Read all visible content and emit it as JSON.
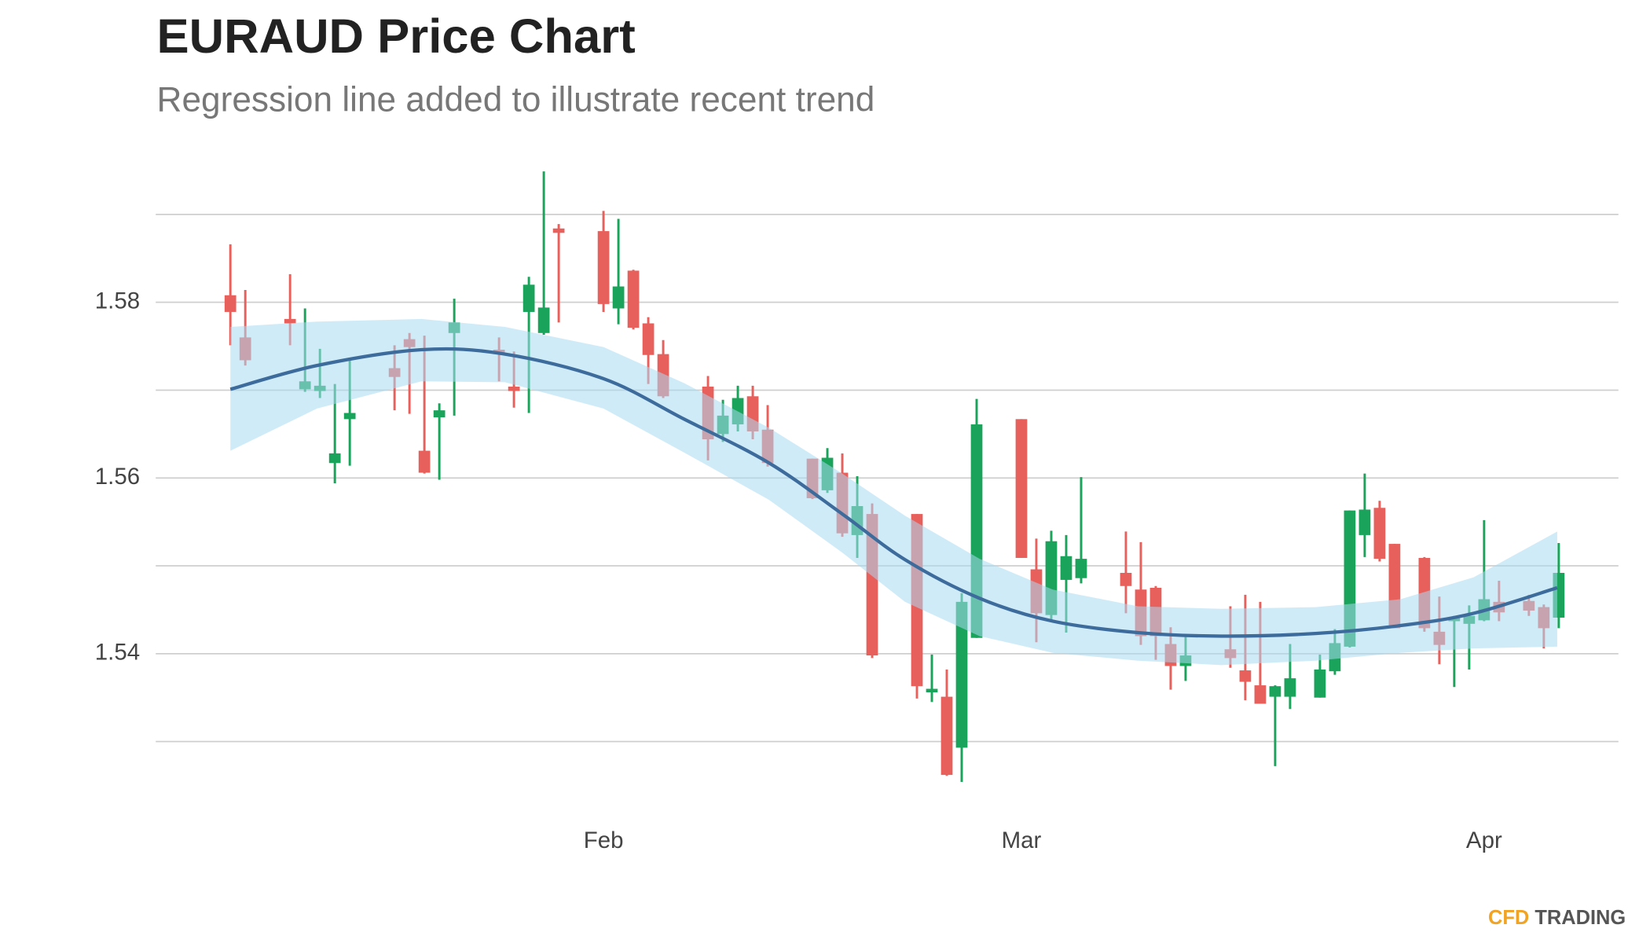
{
  "chart_data": {
    "type": "candlestick",
    "title": "EURAUD Price Chart",
    "subtitle": "Regression line added to illustrate recent trend",
    "brand": {
      "part1": "CFD",
      "part2": "TRADING"
    },
    "up_color": "#1aa35a",
    "down_color": "#e8605c",
    "band_color": "#a9daf2",
    "line_color": "#3d6c9c",
    "grid": true,
    "xlim": [
      2,
      100
    ],
    "xticks": [
      {
        "value": 32,
        "label": "Feb"
      },
      {
        "value": 60,
        "label": "Mar"
      },
      {
        "value": 91,
        "label": "Apr"
      }
    ],
    "ylim": [
      1.523,
      1.595
    ],
    "yticks": [
      1.54,
      1.56,
      1.58
    ],
    "ygrid": [
      1.53,
      1.55,
      1.57,
      1.59
    ],
    "x": [
      7,
      8,
      11,
      12,
      13,
      14,
      15,
      18,
      19,
      20,
      21,
      22,
      25,
      26,
      27,
      28,
      29,
      32,
      33,
      34,
      35,
      36,
      39,
      40,
      41,
      42,
      43,
      46,
      47,
      48,
      49,
      50,
      53,
      54,
      55,
      56,
      57,
      60,
      61,
      62,
      63,
      64,
      67,
      68,
      69,
      70,
      71,
      74,
      75,
      76,
      77,
      78,
      80,
      81,
      82,
      83,
      84,
      85,
      87,
      88,
      89,
      90,
      91,
      92,
      94,
      95,
      96
    ],
    "open": [
      1.5808,
      1.576,
      1.5781,
      1.5701,
      1.5699,
      1.5617,
      1.5667,
      1.5725,
      1.5758,
      1.5631,
      1.5669,
      1.5765,
      1.5746,
      1.5704,
      1.5789,
      1.5765,
      1.5884,
      1.5881,
      1.5793,
      1.5836,
      1.5776,
      1.5741,
      1.5704,
      1.565,
      1.5661,
      1.5693,
      1.5655,
      1.5622,
      1.5586,
      1.5606,
      1.5535,
      1.5559,
      1.5559,
      1.5356,
      1.5351,
      1.5293,
      1.5418,
      1.5667,
      1.5496,
      1.5444,
      1.5484,
      1.5486,
      1.5492,
      1.5473,
      1.5475,
      1.5411,
      1.5386,
      1.5405,
      1.5381,
      1.5364,
      1.5351,
      1.5351,
      1.535,
      1.538,
      1.5408,
      1.5535,
      1.5566,
      1.5525,
      1.5509,
      1.5425,
      1.5437,
      1.5434,
      1.5438,
      1.5459,
      1.546,
      1.5453,
      1.5441
    ],
    "high": [
      1.5866,
      1.5814,
      1.5832,
      1.5793,
      1.5747,
      1.5707,
      1.5734,
      1.5751,
      1.5765,
      1.5762,
      1.5685,
      1.5804,
      1.576,
      1.5744,
      1.5829,
      1.5949,
      1.5889,
      1.5904,
      1.5895,
      1.5837,
      1.5783,
      1.5757,
      1.5716,
      1.5689,
      1.5705,
      1.5705,
      1.5683,
      1.5622,
      1.5634,
      1.5628,
      1.5602,
      1.5571,
      1.5559,
      1.5399,
      1.5382,
      1.5469,
      1.569,
      1.5667,
      1.5531,
      1.554,
      1.5535,
      1.5601,
      1.5539,
      1.5527,
      1.5477,
      1.543,
      1.542,
      1.5454,
      1.5467,
      1.5459,
      1.5364,
      1.5411,
      1.5399,
      1.5428,
      1.5563,
      1.5605,
      1.5574,
      1.5525,
      1.551,
      1.5465,
      1.5443,
      1.5455,
      1.5552,
      1.5483,
      1.5467,
      1.5456,
      1.5526
    ],
    "low": [
      1.5751,
      1.5728,
      1.5751,
      1.5698,
      1.5691,
      1.5594,
      1.5614,
      1.5677,
      1.5673,
      1.5605,
      1.5598,
      1.5671,
      1.571,
      1.568,
      1.5674,
      1.5763,
      1.5777,
      1.5789,
      1.5775,
      1.5769,
      1.5707,
      1.5691,
      1.562,
      1.5641,
      1.5653,
      1.5644,
      1.5613,
      1.5576,
      1.5583,
      1.5533,
      1.5509,
      1.5395,
      1.5349,
      1.5345,
      1.5261,
      1.5254,
      1.5418,
      1.5509,
      1.5413,
      1.5438,
      1.5424,
      1.548,
      1.5446,
      1.541,
      1.5393,
      1.5359,
      1.5369,
      1.5384,
      1.5347,
      1.5343,
      1.5272,
      1.5337,
      1.535,
      1.5376,
      1.5407,
      1.551,
      1.5505,
      1.5429,
      1.5425,
      1.5388,
      1.5362,
      1.5382,
      1.5437,
      1.5437,
      1.5443,
      1.5406,
      1.5429
    ],
    "close": [
      1.5789,
      1.5734,
      1.5776,
      1.571,
      1.5705,
      1.5628,
      1.5674,
      1.5715,
      1.5749,
      1.5606,
      1.5677,
      1.5777,
      1.5741,
      1.5699,
      1.582,
      1.5794,
      1.5879,
      1.5798,
      1.5818,
      1.5771,
      1.574,
      1.5693,
      1.5644,
      1.5671,
      1.5691,
      1.5653,
      1.5617,
      1.5577,
      1.5623,
      1.5537,
      1.5568,
      1.5398,
      1.5363,
      1.536,
      1.5262,
      1.5459,
      1.5661,
      1.5509,
      1.5446,
      1.5528,
      1.5511,
      1.5508,
      1.5477,
      1.542,
      1.542,
      1.5386,
      1.5398,
      1.5395,
      1.5368,
      1.5343,
      1.5363,
      1.5372,
      1.5382,
      1.5412,
      1.5563,
      1.5564,
      1.5508,
      1.5429,
      1.5429,
      1.541,
      1.5441,
      1.5443,
      1.5462,
      1.5447,
      1.5449,
      1.5429,
      1.5492
    ],
    "regression": {
      "x": [
        7,
        12.8,
        19.8,
        25.4,
        32,
        37.4,
        43.1,
        48,
        52.2,
        57.2,
        62.1,
        67.8,
        73.4,
        79.7,
        85.4,
        90.3,
        95.9
      ],
      "values": [
        1.5701,
        1.5728,
        1.5746,
        1.5741,
        1.5713,
        1.5667,
        1.5617,
        1.5559,
        1.5507,
        1.5463,
        1.5437,
        1.5424,
        1.542,
        1.5423,
        1.5432,
        1.5446,
        1.5475
      ],
      "upper": [
        1.5772,
        1.5778,
        1.5781,
        1.5772,
        1.5749,
        1.5708,
        1.5657,
        1.5605,
        1.5557,
        1.5508,
        1.5473,
        1.5454,
        1.5451,
        1.5453,
        1.5462,
        1.5487,
        1.5539
      ],
      "lower": [
        1.5631,
        1.5679,
        1.571,
        1.5709,
        1.5679,
        1.5629,
        1.5575,
        1.5515,
        1.5459,
        1.542,
        1.5401,
        1.5392,
        1.5387,
        1.5392,
        1.5401,
        1.5406,
        1.5408
      ]
    }
  }
}
